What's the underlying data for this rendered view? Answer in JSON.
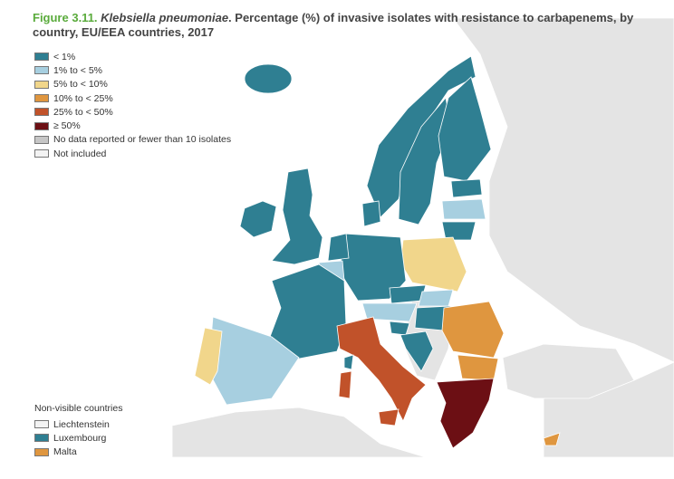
{
  "title": {
    "figure": "Figure 3.11.",
    "organism": "Klebsiella pneumoniae",
    "text": ". Percentage (%) of invasive isolates with resistance to carbapenems, by country, EU/EEA countries, 2017"
  },
  "legend": [
    {
      "label": "< 1%",
      "color": "#2f7f92"
    },
    {
      "label": "1% to < 5%",
      "color": "#a7cfe0"
    },
    {
      "label": "5% to < 10%",
      "color": "#f1d68b"
    },
    {
      "label": "10% to < 25%",
      "color": "#df963f"
    },
    {
      "label": "25% to < 50%",
      "color": "#c1522a"
    },
    {
      "label": "≥ 50%",
      "color": "#6c0f14"
    },
    {
      "label": "No data reported or fewer than 10 isolates",
      "color": "#c6c6c6"
    },
    {
      "label": "Not included",
      "color": "#f3f3f3"
    }
  ],
  "non_visible": {
    "title": "Non-visible countries",
    "items": [
      {
        "label": "Liechtenstein",
        "color": "#f3f3f3"
      },
      {
        "label": "Luxembourg",
        "color": "#2f7f92"
      },
      {
        "label": "Malta",
        "color": "#df963f"
      }
    ]
  }
}
